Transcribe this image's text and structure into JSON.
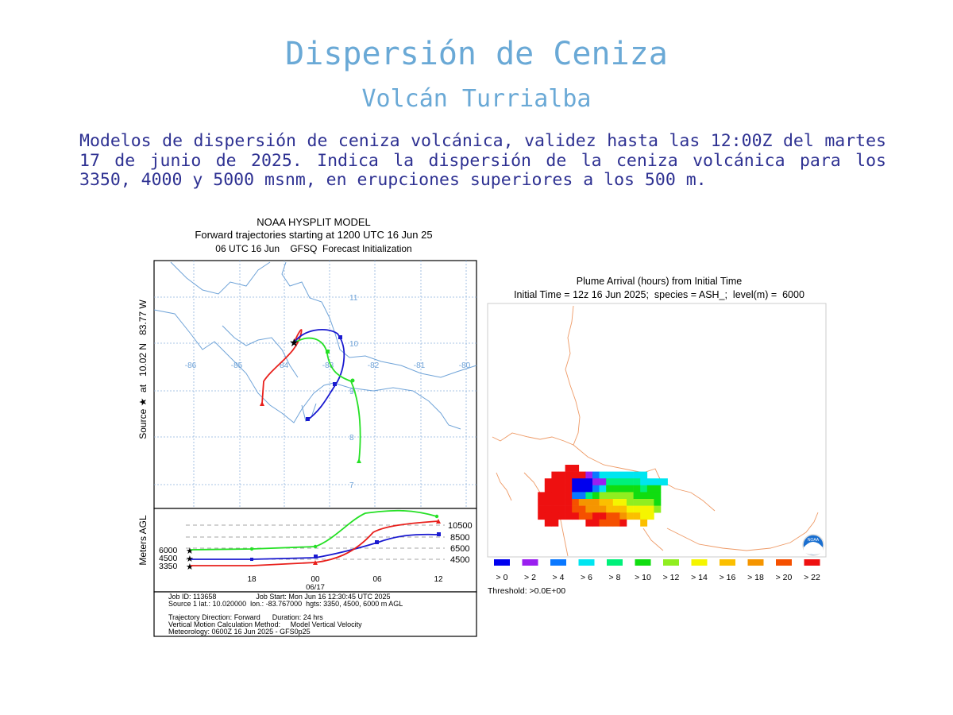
{
  "page": {
    "title": "Dispersión de Ceniza",
    "subtitle": "Volcán Turrialba",
    "description": "Modelos de dispersión de ceniza volcánica, validez hasta las 12:00Z del martes 17 de junio de 2025. Indica la dispersión de la ceniza volcánica para los 3350, 4000 y 5000 msnm, en erupciones superiores a los 500 m."
  },
  "trajectory": {
    "header": [
      "NOAA HYSPLIT MODEL",
      "Forward trajectories starting at 1200 UTC 16 Jun 25",
      "06 UTC 16 Jun    GFSQ  Forecast Initialization"
    ],
    "side_label": "Source ★  at   10.02 N   83.77 W",
    "lon_labels": [
      "-86",
      "-85",
      "-84",
      "-83",
      "-82",
      "-81",
      "-80"
    ],
    "lat_labels": [
      "11",
      "10",
      "9",
      "8",
      "7"
    ],
    "agl_label": "Meters AGL",
    "time_labels": [
      "18",
      "00",
      "06",
      "12"
    ],
    "date_label": "06/17",
    "right_heights": [
      "10500",
      "8500",
      "6500",
      "4500"
    ],
    "left_heights": [
      "6000",
      "4500",
      "3350"
    ],
    "colors": {
      "red": "#e8201c",
      "blue": "#1a1ad0",
      "green": "#25e025",
      "map": "#6fa3d8"
    },
    "info": [
      "Job ID: 113658                    Job Start: Mon Jun 16 12:30:45 UTC 2025",
      "Source 1 lat.: 10.020000  lon.: -83.767000  hgts: 3350, 4500, 6000 m AGL",
      "",
      "Trajectory Direction: Forward      Duration: 24 hrs",
      "Vertical Motion Calculation Method:     Model Vertical Velocity",
      "Meteorology: 0600Z 16 Jun 2025 - GFS0p25"
    ]
  },
  "plume": {
    "title": "Plume Arrival (hours) from Initial Time",
    "subtitle": "Initial Time = 12z 16 Jun 2025;  species = ASH_;  level(m) =  6000",
    "legend": [
      {
        "label": "> 0",
        "color": "#0000ee"
      },
      {
        "label": "> 2",
        "color": "#9a1ff0"
      },
      {
        "label": "> 4",
        "color": "#0a78ff"
      },
      {
        "label": "> 6",
        "color": "#00e5f0"
      },
      {
        "label": "> 8",
        "color": "#00f07a"
      },
      {
        "label": "> 10",
        "color": "#10dd10"
      },
      {
        "label": "> 12",
        "color": "#90ee20"
      },
      {
        "label": "> 14",
        "color": "#f5f500"
      },
      {
        "label": "> 16",
        "color": "#fbbf00"
      },
      {
        "label": "> 18",
        "color": "#f59500"
      },
      {
        "label": "> 20",
        "color": "#f55000"
      },
      {
        "label": "> 22",
        "color": "#ee1010"
      }
    ],
    "threshold": "Threshold: >0.0E+00",
    "logo": "NOAA"
  }
}
